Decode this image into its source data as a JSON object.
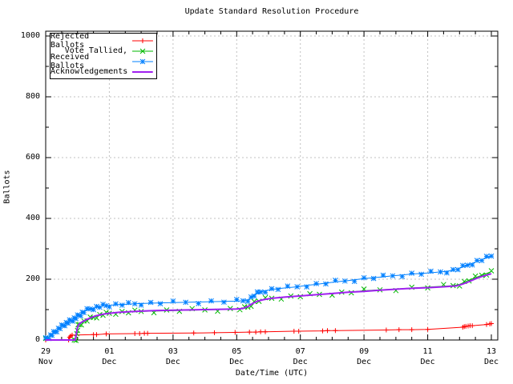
{
  "window": {
    "background": "#ffffff"
  },
  "chart_data": {
    "type": "line",
    "title": "Update Standard Resolution Procedure",
    "xlabel": "Date/Time (UTC)",
    "ylabel": "Ballots",
    "ylim": [
      0,
      1000
    ],
    "x_span_days": 14,
    "grid": true,
    "legend_position": "top-left",
    "colors": {
      "grid": "#c0c0c0",
      "axis": "#000000",
      "text": "#000000"
    },
    "y_ticks": [
      {
        "value": 0,
        "label": "0"
      },
      {
        "value": 200,
        "label": "200"
      },
      {
        "value": 400,
        "label": "400"
      },
      {
        "value": 600,
        "label": "600"
      },
      {
        "value": 800,
        "label": "800"
      },
      {
        "value": 1000,
        "label": "1000"
      }
    ],
    "y_minor_step": 100,
    "y_grid_values": [
      200,
      400,
      600,
      800,
      1000
    ],
    "x_ticks": [
      {
        "day": 0,
        "label": "29",
        "month": "Nov"
      },
      {
        "day": 2,
        "label": "01",
        "month": "Dec"
      },
      {
        "day": 4,
        "label": "03",
        "month": "Dec"
      },
      {
        "day": 6,
        "label": "05",
        "month": "Dec"
      },
      {
        "day": 8,
        "label": "07",
        "month": "Dec"
      },
      {
        "day": 10,
        "label": "09",
        "month": "Dec"
      },
      {
        "day": 12,
        "label": "11",
        "month": "Dec"
      },
      {
        "day": 14,
        "label": "13",
        "month": "Dec"
      }
    ],
    "x_minor_step_days": 0.5,
    "x_grid_days": [
      2,
      4,
      6,
      8,
      10,
      12
    ],
    "x_axis_start": "29 Nov",
    "x_axis_end": "13 Dec",
    "series": [
      {
        "name": "Rejected Ballots",
        "color": "#ff0000",
        "marker": "plus",
        "line_width": 1,
        "jitter": false,
        "points": [
          [
            0,
            0
          ],
          [
            0.72,
            0
          ],
          [
            0.75,
            9
          ],
          [
            0.78,
            13
          ],
          [
            0.83,
            16
          ],
          [
            1.5,
            18
          ],
          [
            1.6,
            18
          ],
          [
            1.9,
            20
          ],
          [
            2.8,
            21
          ],
          [
            2.95,
            21
          ],
          [
            3.1,
            22
          ],
          [
            3.2,
            22
          ],
          [
            4.65,
            23
          ],
          [
            5.3,
            24
          ],
          [
            5.95,
            25
          ],
          [
            6.4,
            26
          ],
          [
            6.6,
            26
          ],
          [
            6.75,
            27
          ],
          [
            6.9,
            27
          ],
          [
            7.8,
            29
          ],
          [
            7.95,
            29
          ],
          [
            8.7,
            30
          ],
          [
            8.85,
            31
          ],
          [
            9.1,
            31
          ],
          [
            10.7,
            33
          ],
          [
            11.1,
            34
          ],
          [
            11.5,
            34
          ],
          [
            12.0,
            35
          ],
          [
            13.1,
            42
          ],
          [
            13.15,
            44
          ],
          [
            13.2,
            45
          ],
          [
            13.27,
            46
          ],
          [
            13.33,
            47
          ],
          [
            13.4,
            47
          ],
          [
            13.85,
            51
          ],
          [
            13.95,
            53
          ],
          [
            14.0,
            54
          ]
        ]
      },
      {
        "name": "Vote Tallied,",
        "color": "#00b800",
        "marker": "cross",
        "line_width": 1,
        "jitter": true,
        "points": [
          [
            0,
            0
          ],
          [
            0.9,
            0
          ],
          [
            0.95,
            4
          ],
          [
            0.98,
            18
          ],
          [
            1.0,
            34
          ],
          [
            1.02,
            45
          ],
          [
            1.06,
            51
          ],
          [
            1.12,
            55
          ],
          [
            1.2,
            60
          ],
          [
            1.3,
            65
          ],
          [
            1.4,
            70
          ],
          [
            1.5,
            74
          ],
          [
            1.6,
            78
          ],
          [
            1.7,
            81
          ],
          [
            1.8,
            84
          ],
          [
            1.9,
            86
          ],
          [
            2.0,
            88
          ],
          [
            2.2,
            90
          ],
          [
            2.4,
            91
          ],
          [
            2.6,
            92
          ],
          [
            2.8,
            93
          ],
          [
            3.0,
            94
          ],
          [
            3.4,
            95
          ],
          [
            3.8,
            96
          ],
          [
            4.2,
            97
          ],
          [
            4.6,
            98
          ],
          [
            5.0,
            99
          ],
          [
            5.4,
            100
          ],
          [
            5.8,
            101
          ],
          [
            6.1,
            102
          ],
          [
            6.25,
            104
          ],
          [
            6.35,
            108
          ],
          [
            6.45,
            116
          ],
          [
            6.55,
            124
          ],
          [
            6.7,
            130
          ],
          [
            6.9,
            134
          ],
          [
            7.1,
            137
          ],
          [
            7.4,
            140
          ],
          [
            7.7,
            142
          ],
          [
            8.0,
            145
          ],
          [
            8.3,
            147
          ],
          [
            8.6,
            150
          ],
          [
            9.0,
            153
          ],
          [
            9.3,
            155
          ],
          [
            9.6,
            158
          ],
          [
            10.0,
            162
          ],
          [
            10.5,
            165
          ],
          [
            11.0,
            168
          ],
          [
            11.5,
            171
          ],
          [
            12.0,
            174
          ],
          [
            12.5,
            177
          ],
          [
            12.8,
            179
          ],
          [
            13.0,
            183
          ],
          [
            13.15,
            190
          ],
          [
            13.3,
            197
          ],
          [
            13.5,
            205
          ],
          [
            13.7,
            213
          ],
          [
            13.85,
            219
          ],
          [
            14.0,
            225
          ]
        ]
      },
      {
        "name": "Received Ballots",
        "color": "#0080ff",
        "marker": "star",
        "line_width": 1,
        "jitter": true,
        "points": [
          [
            0,
            2
          ],
          [
            0.05,
            6
          ],
          [
            0.1,
            10
          ],
          [
            0.15,
            14
          ],
          [
            0.2,
            18
          ],
          [
            0.25,
            22
          ],
          [
            0.3,
            27
          ],
          [
            0.35,
            32
          ],
          [
            0.4,
            36
          ],
          [
            0.45,
            40
          ],
          [
            0.5,
            44
          ],
          [
            0.55,
            48
          ],
          [
            0.6,
            52
          ],
          [
            0.65,
            55
          ],
          [
            0.7,
            58
          ],
          [
            0.75,
            61
          ],
          [
            0.8,
            64
          ],
          [
            0.85,
            67
          ],
          [
            0.9,
            70
          ],
          [
            0.95,
            73
          ],
          [
            1.0,
            77
          ],
          [
            1.05,
            81
          ],
          [
            1.1,
            85
          ],
          [
            1.15,
            89
          ],
          [
            1.2,
            93
          ],
          [
            1.3,
            98
          ],
          [
            1.4,
            102
          ],
          [
            1.5,
            105
          ],
          [
            1.6,
            108
          ],
          [
            1.7,
            110
          ],
          [
            1.8,
            112
          ],
          [
            1.9,
            113
          ],
          [
            2.0,
            114
          ],
          [
            2.2,
            116
          ],
          [
            2.4,
            117
          ],
          [
            2.6,
            118
          ],
          [
            2.8,
            119
          ],
          [
            3.0,
            120
          ],
          [
            3.3,
            121
          ],
          [
            3.6,
            122
          ],
          [
            4.0,
            123
          ],
          [
            4.4,
            124
          ],
          [
            4.8,
            125
          ],
          [
            5.2,
            126
          ],
          [
            5.6,
            127
          ],
          [
            6.0,
            128
          ],
          [
            6.2,
            129
          ],
          [
            6.35,
            132
          ],
          [
            6.45,
            139
          ],
          [
            6.55,
            147
          ],
          [
            6.65,
            153
          ],
          [
            6.75,
            158
          ],
          [
            6.9,
            162
          ],
          [
            7.1,
            166
          ],
          [
            7.3,
            169
          ],
          [
            7.6,
            172
          ],
          [
            7.9,
            175
          ],
          [
            8.2,
            180
          ],
          [
            8.5,
            183
          ],
          [
            8.8,
            187
          ],
          [
            9.1,
            191
          ],
          [
            9.4,
            194
          ],
          [
            9.7,
            198
          ],
          [
            10.0,
            202
          ],
          [
            10.3,
            205
          ],
          [
            10.6,
            208
          ],
          [
            10.9,
            211
          ],
          [
            11.2,
            214
          ],
          [
            11.5,
            217
          ],
          [
            11.8,
            219
          ],
          [
            12.1,
            221
          ],
          [
            12.4,
            224
          ],
          [
            12.6,
            226
          ],
          [
            12.8,
            229
          ],
          [
            12.95,
            234
          ],
          [
            13.1,
            240
          ],
          [
            13.25,
            246
          ],
          [
            13.4,
            252
          ],
          [
            13.55,
            259
          ],
          [
            13.7,
            264
          ],
          [
            13.85,
            270
          ],
          [
            14.0,
            276
          ]
        ]
      },
      {
        "name": "Acknowledgements",
        "color": "#a020f0",
        "marker": "none",
        "line_width": 2,
        "jitter": false,
        "points": [
          [
            0,
            0
          ],
          [
            0.93,
            0
          ],
          [
            0.97,
            25
          ],
          [
            1.0,
            42
          ],
          [
            1.05,
            52
          ],
          [
            1.15,
            60
          ],
          [
            1.3,
            68
          ],
          [
            1.45,
            75
          ],
          [
            1.6,
            80
          ],
          [
            1.8,
            85
          ],
          [
            2.0,
            88
          ],
          [
            2.3,
            91
          ],
          [
            2.6,
            93
          ],
          [
            3.0,
            95
          ],
          [
            3.5,
            97
          ],
          [
            4.0,
            98
          ],
          [
            4.5,
            99
          ],
          [
            5.0,
            100
          ],
          [
            5.5,
            101
          ],
          [
            6.0,
            102
          ],
          [
            6.2,
            104
          ],
          [
            6.35,
            110
          ],
          [
            6.5,
            120
          ],
          [
            6.65,
            128
          ],
          [
            6.85,
            133
          ],
          [
            7.1,
            137
          ],
          [
            7.5,
            141
          ],
          [
            8.0,
            145
          ],
          [
            8.5,
            149
          ],
          [
            9.0,
            153
          ],
          [
            9.5,
            157
          ],
          [
            10.0,
            160
          ],
          [
            10.5,
            164
          ],
          [
            11.0,
            167
          ],
          [
            11.5,
            170
          ],
          [
            12.0,
            172
          ],
          [
            12.5,
            175
          ],
          [
            12.9,
            178
          ],
          [
            13.1,
            184
          ],
          [
            13.3,
            192
          ],
          [
            13.5,
            201
          ],
          [
            13.7,
            209
          ],
          [
            13.9,
            215
          ],
          [
            14.0,
            218
          ]
        ]
      }
    ]
  }
}
